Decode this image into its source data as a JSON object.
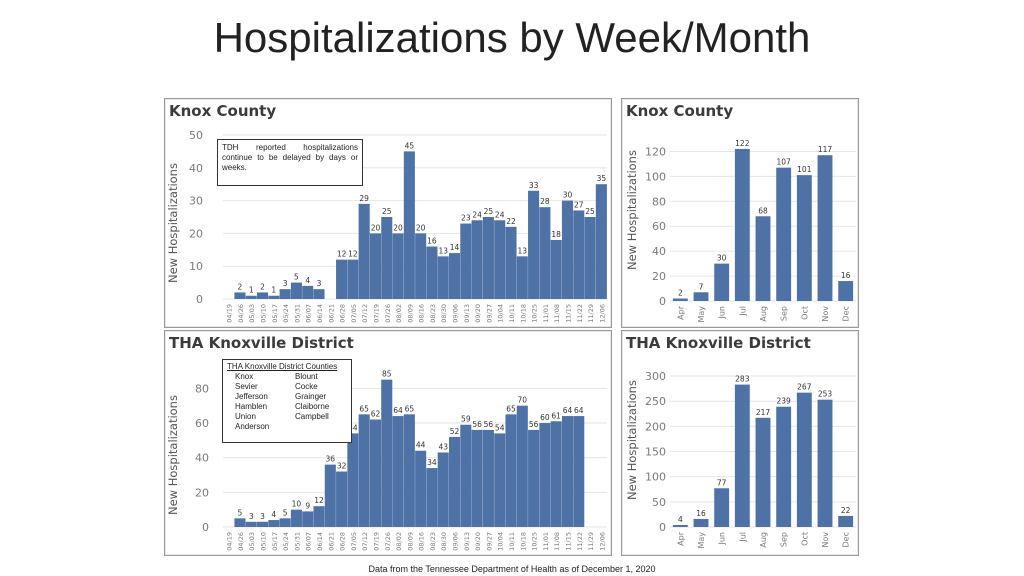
{
  "title": "Hospitalizations by Week/Month",
  "footer": "Data from the Tennessee Department of Health as of December 1, 2020",
  "colors": {
    "bar": "#4e72a6",
    "grid": "#e6e6e6",
    "axis_text": "#7a7a7a"
  },
  "panels": {
    "knox_weekly": {
      "title": "Knox County",
      "ylabel": "New Hospitalizations",
      "note": "TDH reported hospitalizations continue to be delayed by days or weeks."
    },
    "knox_monthly": {
      "title": "Knox County",
      "ylabel": "New Hospitalizations"
    },
    "tha_weekly": {
      "title": "THA Knoxville District",
      "ylabel": "New Hospitalizations",
      "note_heading": "THA Knoxville District Counties",
      "counties_col1": [
        "Knox",
        "Sevier",
        "Jefferson",
        "Hamblen",
        "Union",
        "Anderson"
      ],
      "counties_col2": [
        "Blount",
        "Cocke",
        "Grainger",
        "Claiborne",
        "Campbell"
      ]
    },
    "tha_monthly": {
      "title": "THA Knoxville District",
      "ylabel": "New Hospitalizations"
    }
  },
  "chart_data": [
    {
      "type": "bar",
      "title": "Knox County",
      "ylabel": "New Hospitalizations",
      "ylim": [
        0,
        50
      ],
      "yticks": [
        0,
        10,
        20,
        30,
        40,
        50
      ],
      "grid": true,
      "categories": [
        "04/19",
        "04/26",
        "05/03",
        "05/10",
        "05/17",
        "05/24",
        "05/31",
        "06/07",
        "06/14",
        "06/21",
        "06/28",
        "07/05",
        "07/12",
        "07/19",
        "07/26",
        "08/02",
        "08/09",
        "08/16",
        "08/23",
        "08/30",
        "09/06",
        "09/13",
        "09/20",
        "09/27",
        "10/04",
        "10/11",
        "10/18",
        "10/25",
        "11/01",
        "11/08",
        "11/15",
        "11/22",
        "11/29",
        "12/06"
      ],
      "values": [
        null,
        2,
        1,
        2,
        1,
        3,
        5,
        4,
        3,
        null,
        12,
        12,
        29,
        20,
        25,
        20,
        45,
        20,
        16,
        13,
        14,
        23,
        24,
        25,
        24,
        22,
        13,
        33,
        28,
        18,
        30,
        27,
        25,
        35
      ],
      "labels": [
        "",
        "2",
        "1",
        "2",
        "1",
        "3",
        "5",
        "4",
        "3",
        "",
        "12",
        "12",
        "29",
        "20",
        "25",
        "20",
        "45",
        "20",
        "16",
        "13",
        "14",
        "23",
        "24",
        "25",
        "24",
        "22",
        "13",
        "33",
        "28",
        "18",
        "30",
        "27",
        "25",
        "35"
      ]
    },
    {
      "type": "bar",
      "title": "Knox County",
      "ylabel": "New Hospitalizations",
      "ylim": [
        0,
        130
      ],
      "yticks": [
        0,
        20,
        40,
        60,
        80,
        100,
        120
      ],
      "grid": true,
      "categories": [
        "Apr",
        "May",
        "Jun",
        "Jul",
        "Aug",
        "Sep",
        "Oct",
        "Nov",
        "Dec"
      ],
      "values": [
        2,
        7,
        30,
        122,
        68,
        107,
        101,
        117,
        16
      ],
      "labels": [
        "2",
        "7",
        "30",
        "122",
        "68",
        "107",
        "101",
        "117",
        "16"
      ]
    },
    {
      "type": "bar",
      "title": "THA Knoxville District",
      "ylabel": "New Hospitalizations",
      "ylim": [
        0,
        90
      ],
      "yticks": [
        0,
        20,
        40,
        60,
        80
      ],
      "grid": true,
      "categories": [
        "04/19",
        "04/26",
        "05/03",
        "05/10",
        "05/17",
        "05/24",
        "05/31",
        "06/07",
        "06/14",
        "06/21",
        "06/28",
        "07/05",
        "07/12",
        "07/19",
        "07/26",
        "08/02",
        "08/09",
        "08/16",
        "08/23",
        "08/30",
        "09/06",
        "09/13",
        "09/20",
        "09/27",
        "10/04",
        "10/11",
        "10/18",
        "10/25",
        "11/01",
        "11/08",
        "11/15",
        "11/22",
        "11/29",
        "12/06"
      ],
      "values": [
        null,
        5,
        3,
        3,
        4,
        5,
        10,
        9,
        12,
        36,
        32,
        54,
        65,
        62,
        85,
        64,
        65,
        44,
        34,
        43,
        52,
        59,
        56,
        56,
        54,
        65,
        70,
        56,
        60,
        61,
        64,
        64,
        null,
        null
      ],
      "labels": [
        "",
        "5",
        "3",
        "3",
        "4",
        "5",
        "10",
        "9",
        "12",
        "36",
        "32",
        "54",
        "65",
        "62",
        "85",
        "64",
        "65",
        "44",
        "34",
        "43",
        "52",
        "59",
        "56",
        "56",
        "54",
        "65",
        "70",
        "56",
        "60",
        "61",
        "64",
        "64",
        "",
        ""
      ]
    },
    {
      "type": "bar",
      "title": "THA Knoxville District",
      "ylabel": "New Hospitalizations",
      "ylim": [
        0,
        310
      ],
      "yticks": [
        0,
        50,
        100,
        150,
        200,
        250,
        300
      ],
      "grid": true,
      "categories": [
        "Apr",
        "May",
        "Jun",
        "Jul",
        "Aug",
        "Sep",
        "Oct",
        "Nov",
        "Dec"
      ],
      "values": [
        4,
        16,
        77,
        283,
        217,
        239,
        267,
        253,
        22
      ],
      "labels": [
        "4",
        "16",
        "77",
        "283",
        "217",
        "239",
        "267",
        "253",
        "22"
      ]
    }
  ]
}
